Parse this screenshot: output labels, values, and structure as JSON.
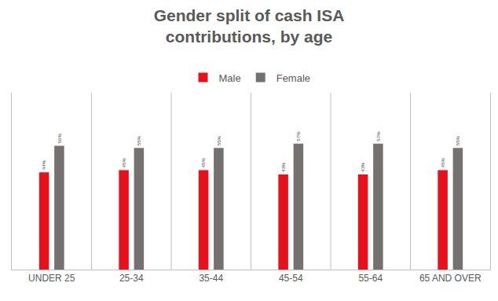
{
  "chart_data": {
    "type": "bar",
    "title": "Gender split of cash ISA\ncontributions, by age",
    "categories": [
      "UNDER 25",
      "25-34",
      "35-44",
      "45-54",
      "55-64",
      "65 AND OVER"
    ],
    "series": [
      {
        "name": "Male",
        "color": "#e8101a",
        "values": [
          44,
          45,
          45,
          43,
          43,
          45
        ],
        "value_labels": [
          "44%",
          "45%",
          "45%",
          "43%",
          "43%",
          "45%"
        ]
      },
      {
        "name": "Female",
        "color": "#767171",
        "values": [
          56,
          55,
          55,
          57,
          57,
          55
        ],
        "value_labels": [
          "56%",
          "55%",
          "55%",
          "57%",
          "57%",
          "55%"
        ]
      }
    ],
    "ylim": [
      0,
      80
    ],
    "grid": false,
    "legend": "top",
    "data_labels": true,
    "tick_labels": "x"
  }
}
